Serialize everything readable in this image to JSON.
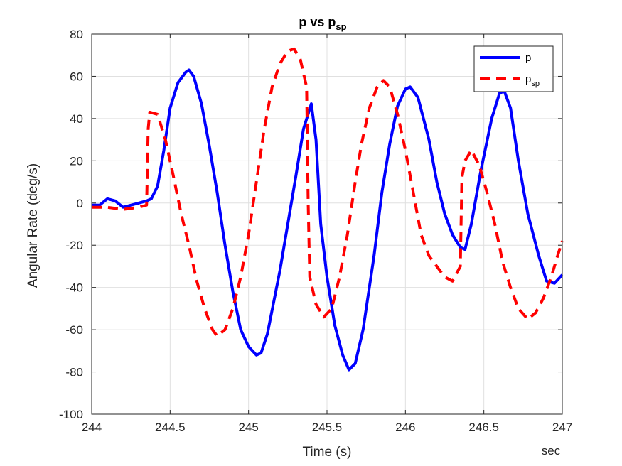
{
  "chart_data": {
    "type": "line",
    "title": {
      "main": "p vs p",
      "sub": "sp"
    },
    "xlabel": "Time (s)",
    "ylabel": "Angular Rate (deg/s)",
    "x_unit_label": "sec",
    "xlim": [
      244,
      247
    ],
    "ylim": [
      -100,
      80
    ],
    "xticks": [
      244,
      244.5,
      245,
      245.5,
      246,
      246.5,
      247
    ],
    "xtick_labels": [
      "244",
      "244.5",
      "245",
      "245.5",
      "246",
      "246.5",
      "247"
    ],
    "yticks": [
      -100,
      -80,
      -60,
      -40,
      -20,
      0,
      20,
      40,
      60,
      80
    ],
    "ytick_labels": [
      "-100",
      "-80",
      "-60",
      "-40",
      "-20",
      "0",
      "20",
      "40",
      "60",
      "80"
    ],
    "grid": true,
    "legend_position": "top-right",
    "series": [
      {
        "name": "p",
        "legend_main": "p",
        "legend_sub": "",
        "color": "#0000ff",
        "style": "solid",
        "points": [
          [
            244.0,
            -1
          ],
          [
            244.05,
            -1
          ],
          [
            244.1,
            2
          ],
          [
            244.15,
            1
          ],
          [
            244.2,
            -2
          ],
          [
            244.25,
            -1
          ],
          [
            244.3,
            0
          ],
          [
            244.35,
            1
          ],
          [
            244.38,
            2
          ],
          [
            244.42,
            8
          ],
          [
            244.46,
            25
          ],
          [
            244.5,
            45
          ],
          [
            244.55,
            57
          ],
          [
            244.6,
            62
          ],
          [
            244.62,
            63
          ],
          [
            244.65,
            60
          ],
          [
            244.7,
            47
          ],
          [
            244.75,
            27
          ],
          [
            244.8,
            5
          ],
          [
            244.85,
            -20
          ],
          [
            244.9,
            -42
          ],
          [
            244.95,
            -60
          ],
          [
            245.0,
            -68
          ],
          [
            245.05,
            -72
          ],
          [
            245.08,
            -71
          ],
          [
            245.12,
            -62
          ],
          [
            245.2,
            -32
          ],
          [
            245.25,
            -10
          ],
          [
            245.3,
            12
          ],
          [
            245.35,
            35
          ],
          [
            245.4,
            47
          ],
          [
            245.43,
            30
          ],
          [
            245.46,
            -10
          ],
          [
            245.5,
            -35
          ],
          [
            245.55,
            -58
          ],
          [
            245.6,
            -72
          ],
          [
            245.64,
            -79
          ],
          [
            245.68,
            -76
          ],
          [
            245.73,
            -60
          ],
          [
            245.8,
            -25
          ],
          [
            245.85,
            5
          ],
          [
            245.9,
            28
          ],
          [
            245.95,
            46
          ],
          [
            246.0,
            54
          ],
          [
            246.03,
            55
          ],
          [
            246.08,
            50
          ],
          [
            246.15,
            30
          ],
          [
            246.2,
            10
          ],
          [
            246.25,
            -5
          ],
          [
            246.3,
            -15
          ],
          [
            246.35,
            -21
          ],
          [
            246.38,
            -22
          ],
          [
            246.42,
            -10
          ],
          [
            246.48,
            15
          ],
          [
            246.55,
            40
          ],
          [
            246.6,
            52
          ],
          [
            246.63,
            53
          ],
          [
            246.67,
            45
          ],
          [
            246.72,
            20
          ],
          [
            246.78,
            -5
          ],
          [
            246.85,
            -25
          ],
          [
            246.9,
            -37
          ],
          [
            246.95,
            -38
          ],
          [
            247.0,
            -34
          ]
        ]
      },
      {
        "name": "p_sp",
        "legend_main": "p",
        "legend_sub": "sp",
        "color": "#ff0000",
        "style": "dashed",
        "points": [
          [
            244.0,
            -2
          ],
          [
            244.1,
            -2
          ],
          [
            244.2,
            -3
          ],
          [
            244.3,
            -2
          ],
          [
            244.35,
            -1
          ],
          [
            244.36,
            35
          ],
          [
            244.37,
            43
          ],
          [
            244.42,
            42
          ],
          [
            244.47,
            30
          ],
          [
            244.52,
            13
          ],
          [
            244.57,
            -5
          ],
          [
            244.62,
            -20
          ],
          [
            244.67,
            -37
          ],
          [
            244.72,
            -50
          ],
          [
            244.77,
            -60
          ],
          [
            244.8,
            -63
          ],
          [
            244.85,
            -60
          ],
          [
            244.9,
            -50
          ],
          [
            244.95,
            -35
          ],
          [
            245.0,
            -15
          ],
          [
            245.05,
            10
          ],
          [
            245.1,
            35
          ],
          [
            245.15,
            55
          ],
          [
            245.2,
            66
          ],
          [
            245.25,
            72
          ],
          [
            245.29,
            73
          ],
          [
            245.33,
            68
          ],
          [
            245.37,
            55
          ],
          [
            245.38,
            0
          ],
          [
            245.39,
            -35
          ],
          [
            245.43,
            -48
          ],
          [
            245.48,
            -54
          ],
          [
            245.53,
            -50
          ],
          [
            245.58,
            -35
          ],
          [
            245.63,
            -15
          ],
          [
            245.68,
            10
          ],
          [
            245.72,
            28
          ],
          [
            245.77,
            45
          ],
          [
            245.82,
            55
          ],
          [
            245.86,
            58
          ],
          [
            245.9,
            55
          ],
          [
            245.95,
            42
          ],
          [
            246.0,
            25
          ],
          [
            246.05,
            5
          ],
          [
            246.1,
            -15
          ],
          [
            246.15,
            -25
          ],
          [
            246.2,
            -30
          ],
          [
            246.25,
            -35
          ],
          [
            246.3,
            -37
          ],
          [
            246.35,
            -30
          ],
          [
            246.36,
            12
          ],
          [
            246.38,
            20
          ],
          [
            246.42,
            25
          ],
          [
            246.47,
            18
          ],
          [
            246.52,
            5
          ],
          [
            246.57,
            -10
          ],
          [
            246.62,
            -28
          ],
          [
            246.67,
            -40
          ],
          [
            246.72,
            -50
          ],
          [
            246.78,
            -55
          ],
          [
            246.83,
            -52
          ],
          [
            246.88,
            -45
          ],
          [
            246.93,
            -35
          ],
          [
            246.97,
            -25
          ],
          [
            247.0,
            -18
          ]
        ]
      }
    ]
  },
  "colors": {
    "grid": "#e0e0e0",
    "axis": "#262626",
    "background": "#ffffff"
  }
}
